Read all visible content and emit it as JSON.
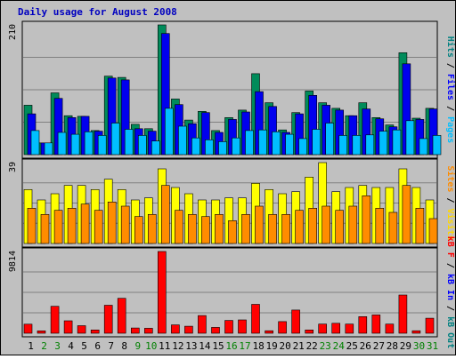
{
  "chart_data": {
    "type": "bar",
    "title": "Daily usage for August 2008",
    "categories": [
      "1",
      "2",
      "3",
      "4",
      "5",
      "6",
      "7",
      "8",
      "9",
      "10",
      "11",
      "12",
      "13",
      "14",
      "15",
      "16",
      "17",
      "18",
      "19",
      "20",
      "21",
      "22",
      "23",
      "24",
      "25",
      "26",
      "27",
      "28",
      "29",
      "30",
      "31"
    ],
    "weekend_days": [
      "2",
      "3",
      "9",
      "10",
      "16",
      "17",
      "23",
      "24",
      "30",
      "31"
    ],
    "panels": [
      {
        "id": "hits-files-pages",
        "max_label": "210",
        "ylim": [
          0,
          210
        ],
        "right_label": [
          {
            "text": "Hits",
            "color": "#008080"
          },
          {
            "text": " / ",
            "color": "#000000"
          },
          {
            "text": "Files",
            "color": "#0000ff"
          },
          {
            "text": " / ",
            "color": "#000000"
          },
          {
            "text": "Pages",
            "color": "#00bfff"
          }
        ],
        "series": [
          {
            "name": "Hits",
            "color": "#008b5a",
            "values": [
              80,
              19,
              100,
              63,
              62,
              39,
              127,
              125,
              49,
              42,
              210,
              90,
              56,
              70,
              39,
              60,
              72,
              131,
              84,
              40,
              68,
              103,
              84,
              75,
              63,
              84,
              60,
              48,
              165,
              59,
              75
            ]
          },
          {
            "name": "Files",
            "color": "#0000ee",
            "values": [
              66,
              19,
              91,
              60,
              62,
              38,
              124,
              121,
              42,
              38,
              196,
              81,
              50,
              68,
              36,
              57,
              69,
              102,
              78,
              36,
              66,
              96,
              80,
              72,
              63,
              74,
              58,
              45,
              147,
              57,
              74
            ]
          },
          {
            "name": "Pages",
            "color": "#00bfff",
            "values": [
              39,
              19,
              36,
              33,
              37,
              31,
              51,
              41,
              31,
              22,
              75,
              46,
              27,
              24,
              21,
              27,
              39,
              40,
              37,
              33,
              26,
              41,
              51,
              31,
              31,
              32,
              38,
              40,
              55,
              26,
              31
            ]
          }
        ]
      },
      {
        "id": "visits-sites",
        "max_label": "39",
        "ylim": [
          0,
          39
        ],
        "right_label": [
          {
            "text": "Sites",
            "color": "#ff8c00"
          },
          {
            "text": " / ",
            "color": "#000000"
          },
          {
            "text": "Visits",
            "color": "#ffd700"
          }
        ],
        "series": [
          {
            "name": "Visits",
            "color": "#ffff00",
            "values": [
              26,
              21,
              24,
              28,
              28,
              26,
              31,
              26,
              21,
              22,
              36,
              27,
              24,
              21,
              21,
              22,
              22,
              29,
              26,
              24,
              25,
              32,
              39,
              25,
              27,
              28,
              27,
              27,
              36,
              27,
              21
            ]
          },
          {
            "name": "Sites",
            "color": "#ff8c00",
            "values": [
              17,
              14,
              16,
              17,
              19,
              16,
              20,
              18,
              13,
              14,
              28,
              16,
              14,
              13,
              14,
              11,
              14,
              18,
              14,
              14,
              16,
              17,
              18,
              16,
              18,
              23,
              17,
              15,
              28,
              17,
              12
            ]
          }
        ]
      },
      {
        "id": "kb-in-out",
        "max_label": "9814",
        "ylim": [
          0,
          9814
        ],
        "right_label": [
          {
            "text": "kB F",
            "color": "#ff0000"
          },
          {
            "text": " / ",
            "color": "#000000"
          },
          {
            "text": "kB In",
            "color": "#0000ff"
          },
          {
            "text": " / ",
            "color": "#000000"
          },
          {
            "text": "kB Out",
            "color": "#008080"
          }
        ],
        "series": [
          {
            "name": "kB F",
            "color": "#ff0000",
            "values": [
              1085,
              290,
              3228,
              1490,
              909,
              392,
              3362,
              4197,
              634,
              600,
              9814,
              1000,
              838,
              2118,
              700,
              1536,
              1601,
              3462,
              300,
              1400,
              2786,
              400,
              1100,
              1200,
              1100,
              2000,
              2200,
              1100,
              4582,
              300,
              1800
            ]
          },
          {
            "name": "kB In",
            "color": "#0000ff",
            "values": [
              0,
              0,
              0,
              0,
              0,
              0,
              0,
              0,
              0,
              0,
              0,
              0,
              0,
              0,
              0,
              0,
              0,
              0,
              0,
              0,
              0,
              0,
              0,
              0,
              0,
              0,
              0,
              0,
              0,
              0,
              0
            ]
          }
        ]
      }
    ],
    "colors": {
      "page_background": "#c0c0c0",
      "plot_background": "#c0c0c0",
      "grid": "#808080",
      "title": "#0000c0",
      "day_label": "#000000",
      "weekend_label": "#008000"
    }
  }
}
